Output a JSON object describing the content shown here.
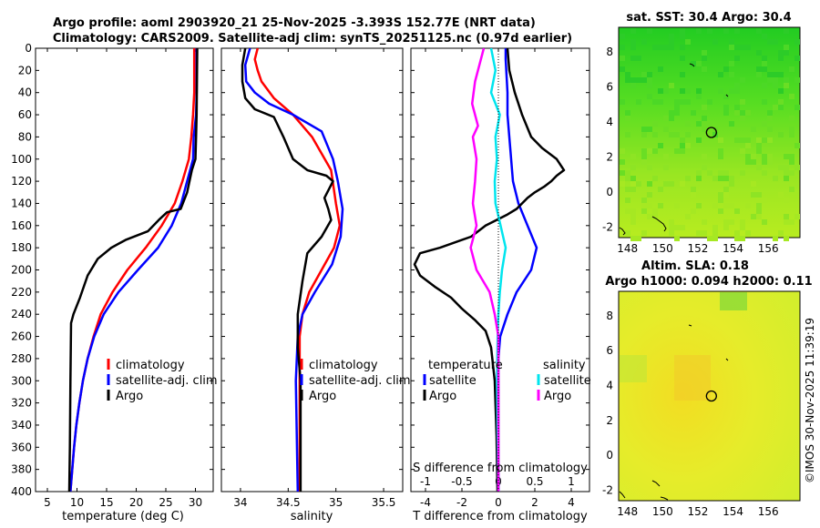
{
  "title": {
    "line1": "Argo profile: aoml 2903920_21 25-Nov-2025 -3.393S 152.77E (NRT data)",
    "line2": "Climatology: CARS2009. Satellite-adj clim: synTS_20251125.nc (0.97d earlier)"
  },
  "copyright": "©IMOS 30-Nov-2025 11:39:19",
  "colors": {
    "clim": "#ff0000",
    "sat": "#0000ff",
    "argo": "#000000",
    "sal_sat": "#00e5ee",
    "sal_argo": "#ff00ff"
  },
  "chart_data": [
    {
      "type": "line",
      "id": "temperature",
      "xlabel": "temperature (deg C)",
      "xlim": [
        3,
        33
      ],
      "ylim": [
        0,
        400
      ],
      "xticks": [
        "5",
        "10",
        "15",
        "20",
        "25",
        "30"
      ],
      "xtick_values": [
        5,
        10,
        15,
        20,
        25,
        30
      ],
      "yticks": [
        "0",
        "20",
        "40",
        "60",
        "80",
        "100",
        "120",
        "140",
        "160",
        "180",
        "200",
        "220",
        "240",
        "260",
        "280",
        "300",
        "320",
        "340",
        "360",
        "380",
        "400"
      ],
      "ytick_values": [
        0,
        20,
        40,
        60,
        80,
        100,
        120,
        140,
        160,
        180,
        200,
        220,
        240,
        260,
        280,
        300,
        320,
        340,
        360,
        380,
        400
      ],
      "legend": [
        "climatology",
        "satellite-adj. clim",
        "Argo"
      ],
      "series": [
        {
          "name": "climatology",
          "color": "#ff0000",
          "points": [
            [
              29.8,
              0
            ],
            [
              29.8,
              40
            ],
            [
              29.6,
              60
            ],
            [
              29.3,
              80
            ],
            [
              28.9,
              100
            ],
            [
              27.8,
              120
            ],
            [
              26.5,
              140
            ],
            [
              24.3,
              160
            ],
            [
              21.6,
              180
            ],
            [
              18.5,
              200
            ],
            [
              16.0,
              220
            ],
            [
              14.0,
              240
            ],
            [
              12.8,
              260
            ],
            [
              11.8,
              280
            ],
            [
              11.0,
              300
            ],
            [
              10.4,
              320
            ],
            [
              9.9,
              340
            ],
            [
              9.5,
              360
            ],
            [
              9.2,
              380
            ],
            [
              8.9,
              400
            ]
          ]
        },
        {
          "name": "satellite-adj. clim",
          "color": "#0000ff",
          "points": [
            [
              30.2,
              0
            ],
            [
              30.2,
              40
            ],
            [
              30.1,
              60
            ],
            [
              29.7,
              80
            ],
            [
              29.6,
              100
            ],
            [
              28.6,
              120
            ],
            [
              27.6,
              140
            ],
            [
              26.0,
              160
            ],
            [
              23.7,
              180
            ],
            [
              20.3,
              200
            ],
            [
              17.0,
              220
            ],
            [
              14.5,
              240
            ],
            [
              12.9,
              260
            ],
            [
              11.8,
              280
            ],
            [
              11.0,
              300
            ],
            [
              10.4,
              320
            ],
            [
              9.9,
              340
            ],
            [
              9.5,
              360
            ],
            [
              9.2,
              380
            ],
            [
              8.9,
              400
            ]
          ]
        },
        {
          "name": "Argo",
          "color": "#000000",
          "points": [
            [
              30.3,
              0
            ],
            [
              30.2,
              60
            ],
            [
              30.1,
              80
            ],
            [
              30.0,
              100
            ],
            [
              29.4,
              110
            ],
            [
              28.6,
              130
            ],
            [
              27.5,
              145
            ],
            [
              25.2,
              148
            ],
            [
              23.8,
              155
            ],
            [
              22.0,
              165
            ],
            [
              18.2,
              173
            ],
            [
              15.8,
              180
            ],
            [
              13.5,
              190
            ],
            [
              11.8,
              205
            ],
            [
              10.5,
              225
            ],
            [
              9.4,
              240
            ],
            [
              9.0,
              248
            ],
            [
              8.9,
              300
            ],
            [
              8.8,
              360
            ],
            [
              8.7,
              400
            ]
          ]
        }
      ]
    },
    {
      "type": "line",
      "id": "salinity",
      "xlabel": "salinity",
      "xlim": [
        33.8,
        35.7
      ],
      "ylim": [
        0,
        400
      ],
      "xticks": [
        "34",
        "34.5",
        "35",
        "35.5"
      ],
      "xtick_values": [
        34,
        34.5,
        35,
        35.5
      ],
      "legend": [
        "climatology",
        "satellite-adj. clim",
        "Argo"
      ],
      "series": [
        {
          "name": "climatology",
          "color": "#ff0000",
          "points": [
            [
              34.18,
              0
            ],
            [
              34.15,
              10
            ],
            [
              34.18,
              20
            ],
            [
              34.22,
              30
            ],
            [
              34.35,
              45
            ],
            [
              34.55,
              60
            ],
            [
              34.75,
              80
            ],
            [
              34.95,
              110
            ],
            [
              35.0,
              140
            ],
            [
              35.04,
              160
            ],
            [
              34.98,
              180
            ],
            [
              34.85,
              200
            ],
            [
              34.72,
              220
            ],
            [
              34.65,
              240
            ],
            [
              34.62,
              260
            ],
            [
              34.62,
              300
            ],
            [
              34.62,
              400
            ]
          ]
        },
        {
          "name": "satellite-adj. clim",
          "color": "#0000ff",
          "points": [
            [
              34.1,
              0
            ],
            [
              34.05,
              15
            ],
            [
              34.06,
              30
            ],
            [
              34.15,
              40
            ],
            [
              34.3,
              50
            ],
            [
              34.55,
              60
            ],
            [
              34.85,
              75
            ],
            [
              34.97,
              100
            ],
            [
              35.02,
              120
            ],
            [
              35.07,
              145
            ],
            [
              35.05,
              170
            ],
            [
              34.96,
              195
            ],
            [
              34.78,
              220
            ],
            [
              34.65,
              240
            ],
            [
              34.6,
              260
            ],
            [
              34.58,
              300
            ],
            [
              34.6,
              400
            ]
          ]
        },
        {
          "name": "Argo",
          "color": "#000000",
          "points": [
            [
              34.05,
              0
            ],
            [
              34.02,
              15
            ],
            [
              34.02,
              30
            ],
            [
              34.05,
              45
            ],
            [
              34.15,
              55
            ],
            [
              34.35,
              62
            ],
            [
              34.45,
              80
            ],
            [
              34.55,
              100
            ],
            [
              34.7,
              110
            ],
            [
              34.9,
              115
            ],
            [
              34.97,
              120
            ],
            [
              34.88,
              135
            ],
            [
              34.92,
              145
            ],
            [
              34.95,
              155
            ],
            [
              34.85,
              170
            ],
            [
              34.7,
              185
            ],
            [
              34.65,
              210
            ],
            [
              34.6,
              240
            ],
            [
              34.6,
              270
            ],
            [
              34.63,
              300
            ],
            [
              34.63,
              400
            ]
          ]
        }
      ]
    },
    {
      "type": "line",
      "id": "difference",
      "xlabel": "T difference from climatology",
      "xlabel_top": "S difference from climatology",
      "xlim": [
        -4.8,
        5.0
      ],
      "ylim": [
        0,
        400
      ],
      "xticks": [
        "-4",
        "-2",
        "0",
        "2",
        "4"
      ],
      "xtick_values": [
        -4,
        -2,
        0,
        2,
        4
      ],
      "top_ticks": [
        "-1",
        "-0.5",
        "0",
        "0.5",
        "1"
      ],
      "top_tick_values": [
        -1,
        -0.5,
        0,
        0.5,
        1
      ],
      "legend": [
        "temperature",
        "satellite",
        "Argo",
        "salinity",
        "satellite",
        "Argo"
      ],
      "series": [
        {
          "name": "temperature satellite",
          "color": "#0000ff",
          "points": [
            [
              0.4,
              0
            ],
            [
              0.4,
              10
            ],
            [
              0.5,
              40
            ],
            [
              0.5,
              60
            ],
            [
              0.6,
              80
            ],
            [
              0.7,
              100
            ],
            [
              0.8,
              120
            ],
            [
              1.1,
              140
            ],
            [
              1.6,
              160
            ],
            [
              2.1,
              180
            ],
            [
              1.8,
              200
            ],
            [
              1.0,
              220
            ],
            [
              0.5,
              240
            ],
            [
              0.1,
              260
            ],
            [
              0.0,
              280
            ],
            [
              0.0,
              400
            ]
          ]
        },
        {
          "name": "temperature Argo",
          "color": "#000000",
          "points": [
            [
              0.5,
              0
            ],
            [
              0.6,
              20
            ],
            [
              0.9,
              40
            ],
            [
              1.3,
              60
            ],
            [
              1.8,
              80
            ],
            [
              2.4,
              90
            ],
            [
              3.2,
              100
            ],
            [
              3.6,
              110
            ],
            [
              3.2,
              115
            ],
            [
              2.9,
              120
            ],
            [
              2.5,
              125
            ],
            [
              2.0,
              130
            ],
            [
              1.6,
              135
            ],
            [
              1.0,
              145
            ],
            [
              0.5,
              150
            ],
            [
              -0.7,
              160
            ],
            [
              -1.5,
              170
            ],
            [
              -3.2,
              180
            ],
            [
              -4.3,
              185
            ],
            [
              -4.6,
              195
            ],
            [
              -4.3,
              205
            ],
            [
              -3.5,
              215
            ],
            [
              -2.6,
              225
            ],
            [
              -2.0,
              235
            ],
            [
              -1.3,
              245
            ],
            [
              -0.7,
              255
            ],
            [
              -0.4,
              270
            ],
            [
              -0.2,
              300
            ],
            [
              -0.1,
              350
            ],
            [
              -0.05,
              400
            ]
          ]
        },
        {
          "name": "salinity satellite",
          "color": "#00e5ee",
          "axis": "salinity",
          "points": [
            [
              -0.1,
              0
            ],
            [
              -0.04,
              20
            ],
            [
              -0.1,
              40
            ],
            [
              0.02,
              60
            ],
            [
              -0.04,
              80
            ],
            [
              -0.02,
              100
            ],
            [
              -0.05,
              120
            ],
            [
              -0.04,
              140
            ],
            [
              0.03,
              160
            ],
            [
              0.1,
              180
            ],
            [
              0.05,
              200
            ],
            [
              0.02,
              220
            ],
            [
              0.0,
              240
            ],
            [
              -0.01,
              260
            ],
            [
              -0.02,
              300
            ],
            [
              0.0,
              400
            ]
          ]
        },
        {
          "name": "salinity Argo",
          "color": "#ff00ff",
          "axis": "salinity",
          "points": [
            [
              -0.2,
              0
            ],
            [
              -0.32,
              30
            ],
            [
              -0.36,
              50
            ],
            [
              -0.28,
              70
            ],
            [
              -0.35,
              80
            ],
            [
              -0.3,
              100
            ],
            [
              -0.32,
              120
            ],
            [
              -0.35,
              140
            ],
            [
              -0.3,
              160
            ],
            [
              -0.38,
              180
            ],
            [
              -0.3,
              200
            ],
            [
              -0.12,
              220
            ],
            [
              -0.05,
              240
            ],
            [
              0.0,
              260
            ],
            [
              0.0,
              400
            ]
          ]
        }
      ]
    },
    {
      "type": "heatmap",
      "id": "sst_map",
      "title": "sat. SST: 30.4 Argo: 30.4",
      "xlim": [
        147.5,
        157.8
      ],
      "ylim": [
        -2.6,
        9.4
      ],
      "xticks": [
        "148",
        "150",
        "152",
        "154",
        "156"
      ],
      "xtick_values": [
        148,
        150,
        152,
        154,
        156
      ],
      "yticks": [
        "8",
        "6",
        "4",
        "2",
        "0",
        "-2"
      ],
      "ytick_values": [
        8,
        6,
        4,
        2,
        0,
        -2
      ],
      "marker": [
        152.77,
        3.4
      ]
    },
    {
      "type": "heatmap",
      "id": "sla_map",
      "title": "Altim. SLA: 0.18",
      "subtitle": "Argo h1000: 0.094 h2000: 0.11",
      "xlim": [
        147.5,
        157.8
      ],
      "ylim": [
        -2.6,
        9.4
      ],
      "xticks": [
        "148",
        "150",
        "152",
        "154",
        "156"
      ],
      "xtick_values": [
        148,
        150,
        152,
        154,
        156
      ],
      "yticks": [
        "8",
        "6",
        "4",
        "2",
        "0",
        "-2"
      ],
      "ytick_values": [
        8,
        6,
        4,
        2,
        0,
        -2
      ],
      "marker": [
        152.77,
        3.4
      ]
    }
  ]
}
